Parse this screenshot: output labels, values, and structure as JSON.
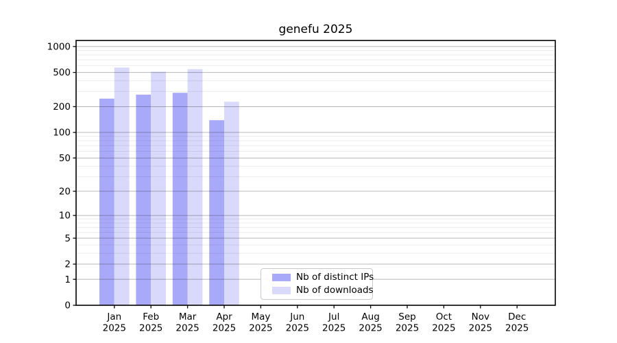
{
  "chart_data": {
    "type": "bar",
    "title": "genefu 2025",
    "x_axis": {
      "months": [
        "Jan",
        "Feb",
        "Mar",
        "Apr",
        "May",
        "Jun",
        "Jul",
        "Aug",
        "Sep",
        "Oct",
        "Nov",
        "Dec"
      ],
      "year": "2025"
    },
    "y_axis": {
      "scale": "log10(value+1)",
      "tick_values": [
        0,
        1,
        2,
        5,
        10,
        20,
        50,
        100,
        200,
        500,
        1000
      ],
      "minor_gridline_values": [
        3,
        4,
        6,
        7,
        8,
        9,
        30,
        40,
        60,
        70,
        80,
        90,
        300,
        400,
        600,
        700,
        800,
        900
      ],
      "top_value": 1175,
      "ylim": [
        0,
        1175
      ]
    },
    "series": [
      {
        "name": "Nb of distinct IPs",
        "color": "#a9a9fa",
        "values": [
          248,
          276,
          290,
          139,
          null,
          null,
          null,
          null,
          null,
          null,
          null,
          null
        ]
      },
      {
        "name": "Nb of downloads",
        "color": "#d9d9fb",
        "values": [
          570,
          510,
          546,
          228,
          null,
          null,
          null,
          null,
          null,
          null,
          null,
          null
        ]
      }
    ],
    "legend": {
      "position": "inside-bottom-center"
    },
    "grid": {
      "horizontal_major": true,
      "horizontal_minor": true,
      "vertical": false
    }
  },
  "colors": {
    "bar_distinct_ips": "#a9a9fa",
    "bar_downloads": "#d9d9fb",
    "major_grid": "rgba(0,0,0,0.28)",
    "minor_grid": "rgba(0,0,0,0.08)",
    "axis": "#000000",
    "background": "#ffffff",
    "legend_border": "#c9c9c9"
  }
}
